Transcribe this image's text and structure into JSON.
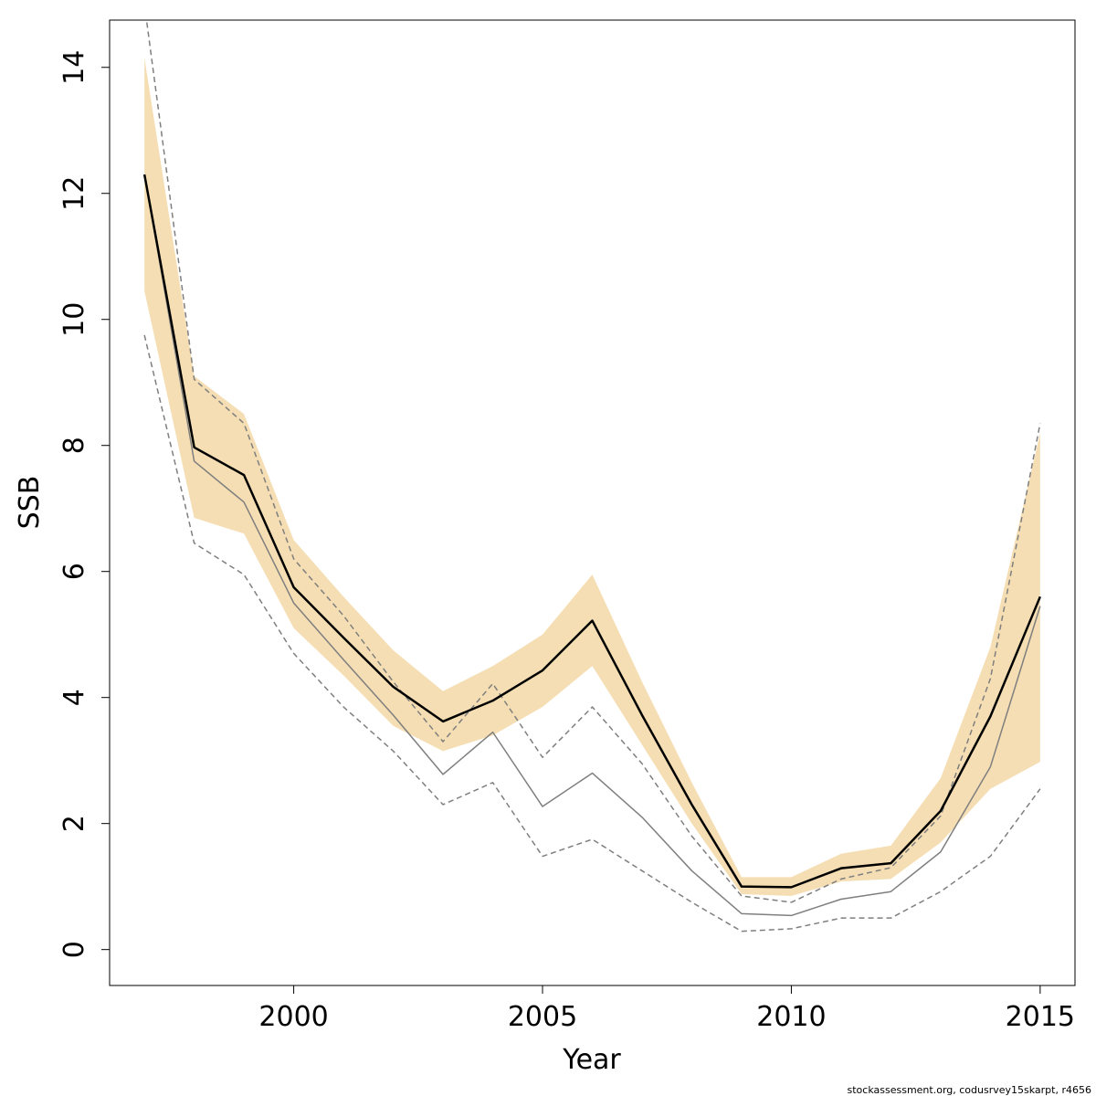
{
  "chart_data": {
    "type": "line",
    "xlabel": "Year",
    "ylabel": "SSB",
    "xlim": [
      1996.3,
      2015.7
    ],
    "ylim": [
      -0.57,
      14.75
    ],
    "xticks": [
      2000,
      2005,
      2010,
      2015
    ],
    "yticks": [
      0,
      2,
      4,
      6,
      8,
      10,
      12,
      14
    ],
    "grid": false,
    "years": [
      1997,
      1998,
      1999,
      2000,
      2001,
      2002,
      2003,
      2004,
      2005,
      2006,
      2007,
      2008,
      2009,
      2010,
      2011,
      2012,
      2013,
      2014,
      2015
    ],
    "band": {
      "color": "#f5deb3",
      "lower": [
        10.45,
        6.85,
        6.6,
        5.1,
        4.35,
        3.55,
        3.15,
        3.4,
        3.85,
        4.5,
        3.25,
        2.0,
        0.88,
        0.85,
        1.08,
        1.12,
        1.7,
        2.55,
        2.98
      ],
      "upper": [
        14.15,
        9.1,
        8.5,
        6.5,
        5.6,
        4.75,
        4.1,
        4.5,
        5.0,
        5.95,
        4.25,
        2.65,
        1.15,
        1.15,
        1.52,
        1.65,
        2.72,
        4.8,
        8.2
      ]
    },
    "series": [
      {
        "values": [
          12.3,
          7.97,
          7.53,
          5.75,
          4.95,
          4.17,
          3.62,
          3.95,
          4.43,
          5.22,
          3.72,
          2.3,
          1.0,
          0.99,
          1.29,
          1.37,
          2.2,
          3.7,
          5.6
        ],
        "color": "#000000",
        "style": "solid",
        "width": 2.5
      },
      {
        "values": [
          12.3,
          7.75,
          7.1,
          5.5,
          4.6,
          3.72,
          2.78,
          3.45,
          2.27,
          2.8,
          2.1,
          1.25,
          0.57,
          0.54,
          0.8,
          0.92,
          1.55,
          2.9,
          5.45
        ],
        "color": "#7f7f7f",
        "style": "solid",
        "width": 1.5
      },
      {
        "values": [
          15.0,
          9.05,
          8.35,
          6.2,
          5.3,
          4.25,
          3.3,
          4.22,
          3.05,
          3.85,
          2.95,
          1.8,
          0.85,
          0.75,
          1.12,
          1.3,
          2.12,
          4.3,
          8.35
        ],
        "color": "#7f7f7f",
        "style": "dashed",
        "width": 1.5
      },
      {
        "values": [
          9.75,
          6.45,
          5.95,
          4.7,
          3.85,
          3.15,
          2.3,
          2.65,
          1.48,
          1.75,
          1.25,
          0.75,
          0.29,
          0.33,
          0.5,
          0.5,
          0.92,
          1.48,
          2.55
        ],
        "color": "#7f7f7f",
        "style": "dashed",
        "width": 1.5
      }
    ]
  },
  "footer": {
    "credit": "stockassessment.org, codusrvey15skarpt, r4656"
  }
}
